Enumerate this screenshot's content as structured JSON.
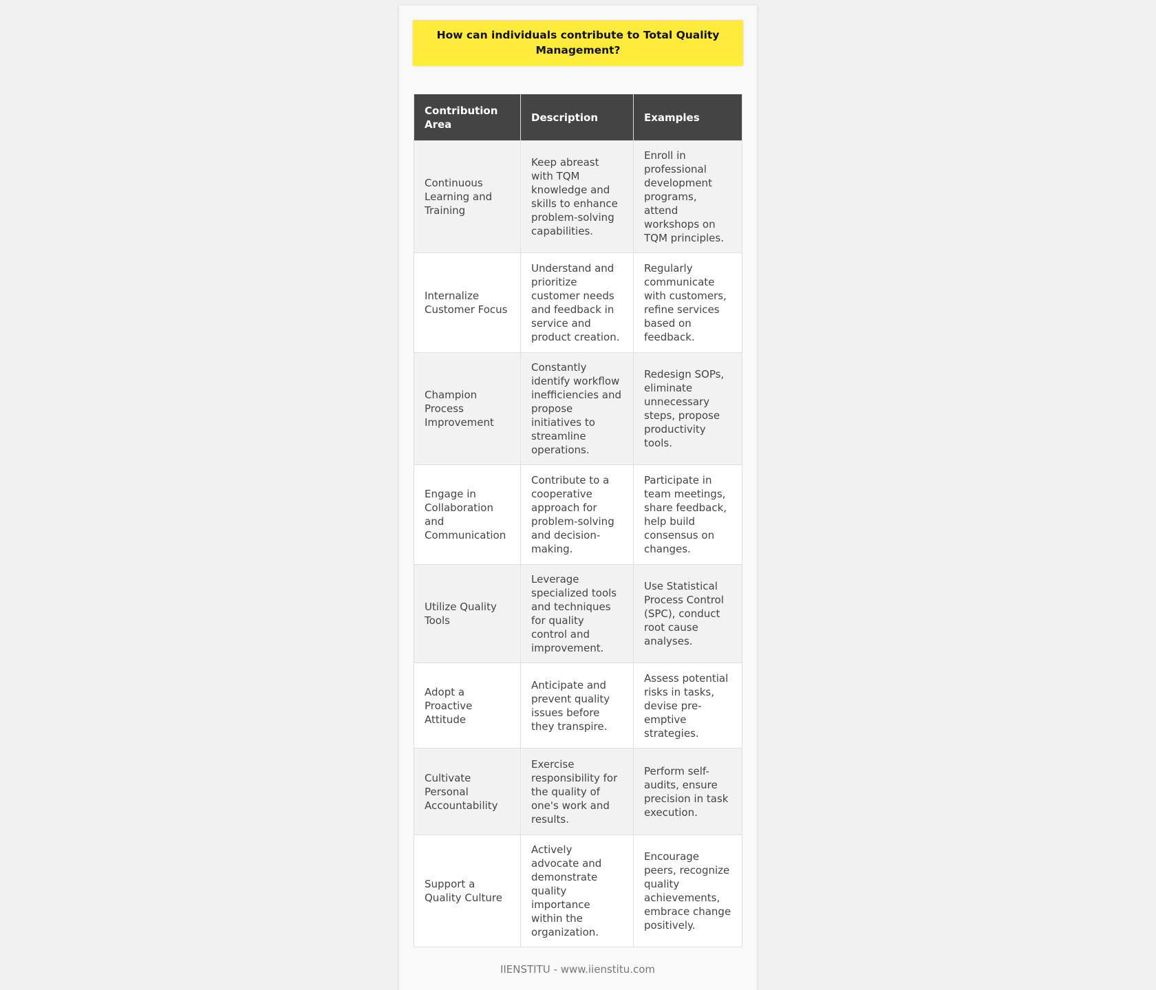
{
  "title": "How can individuals contribute to Total Quality Management?",
  "table": {
    "headers": [
      "Contribution Area",
      "Description",
      "Examples"
    ],
    "rows": [
      [
        "Continuous Learning and Training",
        "Keep abreast with TQM knowledge and skills to enhance problem-solving capabilities.",
        "Enroll in professional development programs, attend workshops on TQM principles."
      ],
      [
        "Internalize Customer Focus",
        "Understand and prioritize customer needs and feedback in service and product creation.",
        "Regularly communicate with customers, refine services based on feedback."
      ],
      [
        "Champion Process Improvement",
        "Constantly identify workflow inefficiencies and propose initiatives to streamline operations.",
        "Redesign SOPs, eliminate unnecessary steps, propose productivity tools."
      ],
      [
        "Engage in Collaboration and Communication",
        "Contribute to a cooperative approach for problem-solving and decision-making.",
        "Participate in team meetings, share feedback, help build consensus on changes."
      ],
      [
        "Utilize Quality Tools",
        "Leverage specialized tools and techniques for quality control and improvement.",
        "Use Statistical Process Control (SPC), conduct root cause analyses."
      ],
      [
        "Adopt a Proactive Attitude",
        "Anticipate and prevent quality issues before they transpire.",
        "Assess potential risks in tasks, devise pre-emptive strategies."
      ],
      [
        "Cultivate Personal Accountability",
        "Exercise responsibility for the quality of one's work and results.",
        "Perform self-audits, ensure precision in task execution."
      ],
      [
        "Support a Quality Culture",
        "Actively advocate and demonstrate quality importance within the organization.",
        "Encourage peers, recognize quality achievements, embrace change positively."
      ]
    ]
  },
  "footer": "IIENSTITU - www.iienstitu.com",
  "colors": {
    "title_bg": "#ffeb3b",
    "header_bg": "#444444",
    "row_alt_bg": "#f2f2f2"
  }
}
